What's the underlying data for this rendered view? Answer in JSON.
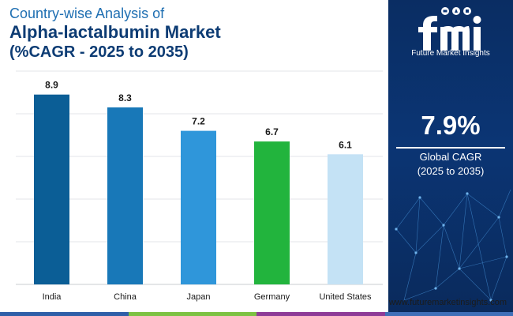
{
  "header": {
    "line1": "Country-wise Analysis of",
    "line2": "Alpha-lactalbumin Market",
    "line3": "(%CAGR - 2025 to 2035)"
  },
  "chart_data": {
    "type": "bar",
    "title": "Country-wise Analysis of Alpha-lactalbumin Market (%CAGR - 2025 to 2035)",
    "categories": [
      "India",
      "China",
      "Japan",
      "Germany",
      "United States"
    ],
    "values": [
      8.9,
      8.3,
      7.2,
      6.7,
      6.1
    ],
    "data_labels": [
      "8.9",
      "8.3",
      "7.2",
      "6.7",
      "6.1"
    ],
    "colors": [
      "#0b5e96",
      "#1878b8",
      "#2f96da",
      "#22b43d",
      "#c4e2f5"
    ],
    "xlabel": "",
    "ylabel": "",
    "ylim": [
      0,
      10
    ],
    "grid": true,
    "legend": "none"
  },
  "side_panel": {
    "logo_text": "fmi",
    "logo_subtitle": "Future Market Insights",
    "cagr_value": "7.9%",
    "cagr_label_line1": "Global CAGR",
    "cagr_label_line2": "(2025 to 2035)"
  },
  "footer": {
    "website": "www.futuremarketinsights.com",
    "bar_colors": [
      "#2e5fa8",
      "#7cc242",
      "#8e3b97",
      "#3f6fb8"
    ]
  }
}
